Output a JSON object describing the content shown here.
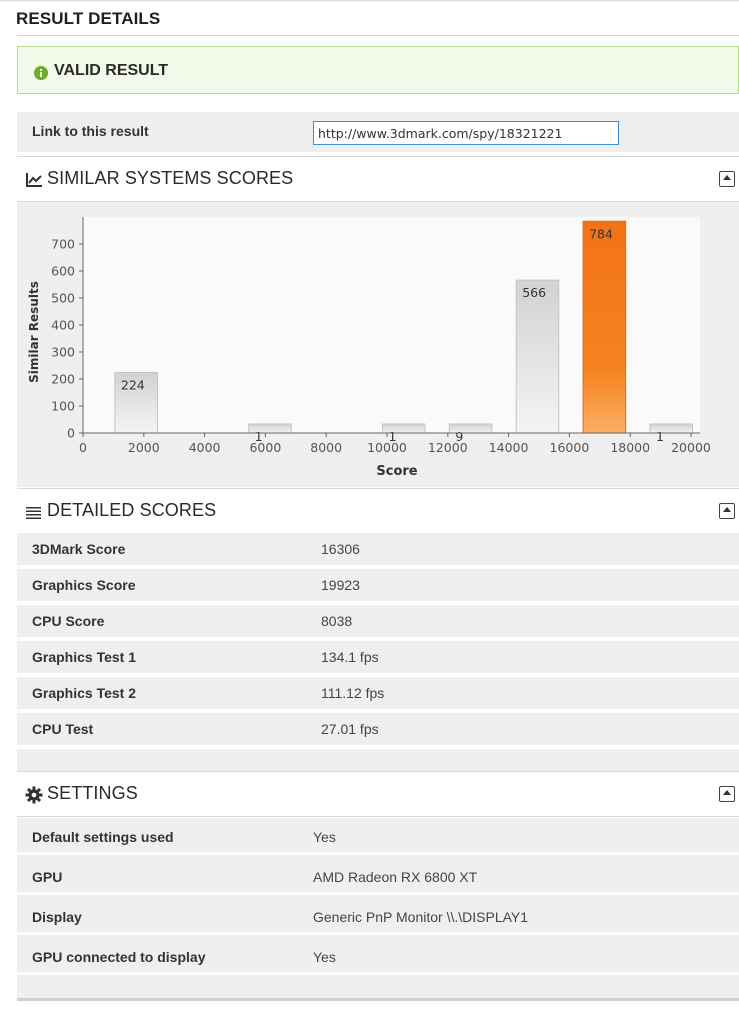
{
  "page": {
    "title": "RESULT DETAILS"
  },
  "status": {
    "text": "VALID RESULT",
    "icon": "info-icon",
    "color": "#6aae27"
  },
  "link": {
    "label": "Link to this result",
    "url": "http://www.3dmark.com/spy/18321221"
  },
  "similar": {
    "title": "SIMILAR SYSTEMS SCORES",
    "icon": "line-chart-icon"
  },
  "chart_data": {
    "type": "bar",
    "xlabel": "Score",
    "ylabel": "Similar Results",
    "xlim": [
      0,
      20800
    ],
    "ylim": [
      0,
      785
    ],
    "x_ticks": [
      "0",
      "2000",
      "4000",
      "6000",
      "8000",
      "10000",
      "12000",
      "14000",
      "16000",
      "18000",
      "20000"
    ],
    "y_ticks": [
      "0",
      "100",
      "200",
      "300",
      "400",
      "500",
      "600",
      "700"
    ],
    "bars": [
      {
        "x": 1750,
        "value": 224,
        "label": "224"
      },
      {
        "x": 6150,
        "value": 1,
        "label": "1"
      },
      {
        "x": 10550,
        "value": 1,
        "label": "1"
      },
      {
        "x": 12750,
        "value": 9,
        "label": "9"
      },
      {
        "x": 14950,
        "value": 566,
        "label": "566"
      },
      {
        "x": 17150,
        "value": 784,
        "label": "784",
        "highlight": true
      },
      {
        "x": 19350,
        "value": 1,
        "label": "1"
      }
    ],
    "bar_width": 1400,
    "grid": false,
    "colors": {
      "bar": "#d9d9d9",
      "highlight": "#f47b20",
      "plot_bg": "#fafafa"
    }
  },
  "detailed": {
    "title": "DETAILED SCORES",
    "icon": "list-icon",
    "rows": [
      {
        "label": "3DMark Score",
        "value": "16306"
      },
      {
        "label": "Graphics Score",
        "value": "19923"
      },
      {
        "label": "CPU Score",
        "value": "8038"
      },
      {
        "label": "Graphics Test 1",
        "value": "134.1 fps"
      },
      {
        "label": "Graphics Test 2",
        "value": "111.12 fps"
      },
      {
        "label": "CPU Test",
        "value": "27.01 fps"
      }
    ]
  },
  "settings": {
    "title": "SETTINGS",
    "icon": "gear-icon",
    "rows": [
      {
        "label": "Default settings used",
        "value": "Yes"
      },
      {
        "label": "GPU",
        "value": "AMD Radeon RX 6800 XT"
      },
      {
        "label": "Display",
        "value": "Generic PnP Monitor \\\\.\\DISPLAY1"
      },
      {
        "label": "GPU connected to display",
        "value": "Yes"
      }
    ]
  }
}
